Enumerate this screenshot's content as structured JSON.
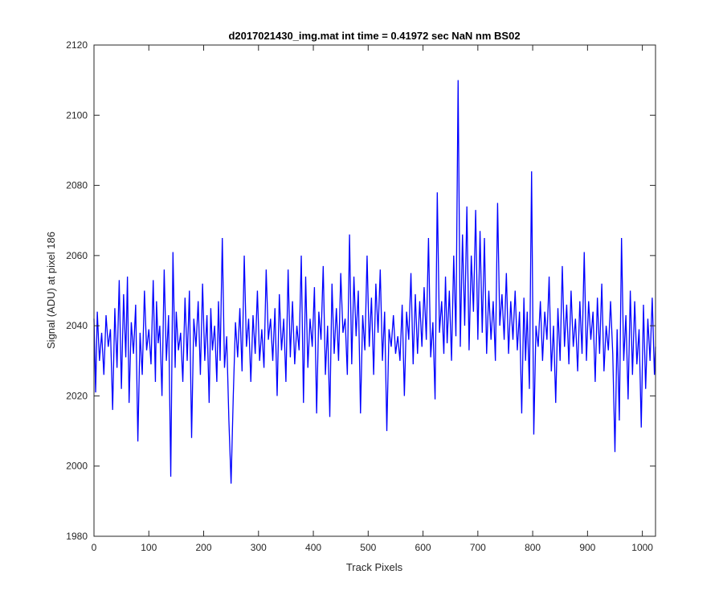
{
  "chart_data": {
    "type": "line",
    "title": "d2017021430_img.mat int time = 0.41972 sec  NaN nm BS02",
    "xlabel": "Track Pixels",
    "ylabel": "Signal (ADU) at pixel 186",
    "xlim": [
      0,
      1024
    ],
    "ylim": [
      1980,
      2120
    ],
    "xticks": [
      "0",
      "100",
      "200",
      "300",
      "400",
      "500",
      "600",
      "700",
      "800",
      "900",
      "1000"
    ],
    "yticks": [
      "1980",
      "2000",
      "2020",
      "2040",
      "2060",
      "2080",
      "2100",
      "2120"
    ],
    "grid": false,
    "line_color": "#0000ff",
    "series": [
      {
        "x": [
          0,
          3,
          6,
          10,
          14,
          18,
          22,
          26,
          30,
          34,
          38,
          42,
          46,
          50,
          54,
          58,
          61,
          64,
          68,
          72,
          76,
          80,
          84,
          88,
          92,
          96,
          100,
          104,
          108,
          112,
          114,
          117,
          120,
          124,
          128,
          132,
          136,
          140,
          144,
          148,
          150,
          154,
          158,
          162,
          166,
          170,
          174,
          178,
          182,
          186,
          190,
          194,
          198,
          202,
          206,
          210,
          213,
          216,
          220,
          224,
          227,
          230,
          234,
          238,
          242,
          246,
          250,
          254,
          258,
          262,
          266,
          270,
          274,
          278,
          282,
          286,
          290,
          294,
          298,
          302,
          306,
          310,
          314,
          318,
          322,
          326,
          330,
          334,
          338,
          342,
          346,
          350,
          354,
          358,
          362,
          366,
          370,
          374,
          378,
          382,
          386,
          390,
          394,
          398,
          402,
          406,
          410,
          414,
          418,
          422,
          426,
          430,
          434,
          438,
          442,
          446,
          450,
          454,
          458,
          462,
          466,
          470,
          474,
          478,
          482,
          486,
          490,
          494,
          498,
          502,
          506,
          510,
          514,
          518,
          522,
          526,
          530,
          534,
          538,
          542,
          546,
          550,
          554,
          558,
          562,
          566,
          570,
          574,
          578,
          582,
          586,
          590,
          594,
          598,
          602,
          606,
          610,
          614,
          618,
          622,
          626,
          630,
          634,
          638,
          641,
          644,
          648,
          652,
          656,
          660,
          664,
          668,
          672,
          676,
          680,
          684,
          688,
          692,
          696,
          700,
          704,
          708,
          712,
          716,
          720,
          724,
          728,
          732,
          736,
          740,
          744,
          748,
          752,
          756,
          760,
          764,
          768,
          772,
          776,
          780,
          784,
          787,
          790,
          794,
          798,
          802,
          806,
          810,
          814,
          818,
          822,
          826,
          830,
          834,
          838,
          842,
          846,
          850,
          854,
          858,
          862,
          866,
          870,
          874,
          878,
          882,
          886,
          890,
          894,
          898,
          902,
          906,
          910,
          914,
          918,
          922,
          926,
          930,
          934,
          938,
          942,
          946,
          950,
          954,
          958,
          962,
          966,
          970,
          974,
          978,
          982,
          986,
          990,
          994,
          998,
          1002,
          1006,
          1010,
          1014,
          1018,
          1022,
          1024
        ],
        "y": [
          2042,
          2021,
          2044,
          2030,
          2038,
          2026,
          2043,
          2034,
          2039,
          2016,
          2045,
          2028,
          2053,
          2022,
          2049,
          2031,
          2054,
          2018,
          2041,
          2032,
          2046,
          2007,
          2038,
          2026,
          2050,
          2033,
          2039,
          2029,
          2053,
          2024,
          2047,
          2035,
          2040,
          2020,
          2056,
          2030,
          2043,
          1997,
          2061,
          2028,
          2044,
          2033,
          2038,
          2024,
          2048,
          2030,
          2050,
          2008,
          2042,
          2034,
          2047,
          2026,
          2052,
          2030,
          2043,
          2018,
          2045,
          2033,
          2040,
          2024,
          2047,
          2030,
          2065,
          2028,
          2037,
          2013,
          1995,
          2020,
          2041,
          2031,
          2045,
          2027,
          2060,
          2034,
          2042,
          2024,
          2043,
          2032,
          2050,
          2030,
          2039,
          2028,
          2056,
          2036,
          2042,
          2030,
          2045,
          2020,
          2049,
          2033,
          2042,
          2024,
          2056,
          2031,
          2047,
          2029,
          2040,
          2033,
          2060,
          2018,
          2054,
          2028,
          2042,
          2034,
          2051,
          2015,
          2044,
          2036,
          2057,
          2026,
          2040,
          2014,
          2052,
          2032,
          2045,
          2030,
          2055,
          2038,
          2042,
          2026,
          2066,
          2029,
          2054,
          2037,
          2050,
          2015,
          2043,
          2033,
          2060,
          2034,
          2048,
          2026,
          2052,
          2038,
          2056,
          2030,
          2044,
          2010,
          2039,
          2034,
          2043,
          2032,
          2037,
          2030,
          2046,
          2020,
          2044,
          2036,
          2055,
          2029,
          2049,
          2032,
          2047,
          2034,
          2051,
          2036,
          2065,
          2031,
          2041,
          2019,
          2078,
          2038,
          2047,
          2032,
          2054,
          2035,
          2050,
          2030,
          2060,
          2037,
          2110,
          2034,
          2066,
          2040,
          2074,
          2033,
          2060,
          2044,
          2073,
          2036,
          2067,
          2038,
          2065,
          2032,
          2050,
          2036,
          2047,
          2030,
          2075,
          2040,
          2049,
          2036,
          2055,
          2032,
          2047,
          2036,
          2050,
          2033,
          2044,
          2015,
          2048,
          2030,
          2044,
          2022,
          2084,
          2009,
          2040,
          2034,
          2047,
          2030,
          2044,
          2036,
          2054,
          2027,
          2040,
          2018,
          2045,
          2030,
          2057,
          2034,
          2046,
          2029,
          2050,
          2034,
          2042,
          2027,
          2047,
          2032,
          2061,
          2030,
          2047,
          2036,
          2044,
          2024,
          2048,
          2032,
          2052,
          2027,
          2040,
          2033,
          2047,
          2032,
          2004,
          2039,
          2013,
          2065,
          2030,
          2043,
          2019,
          2050,
          2026,
          2047,
          2029,
          2039,
          2011,
          2046,
          2022,
          2042,
          2030,
          2048,
          2026,
          2034
        ]
      }
    ]
  }
}
